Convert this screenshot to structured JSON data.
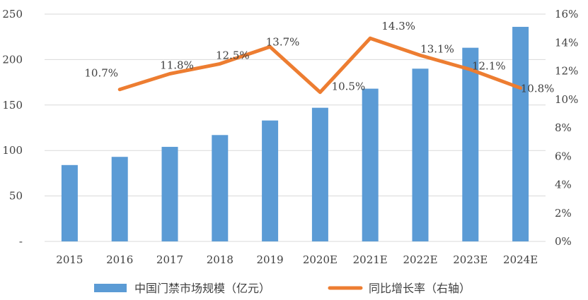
{
  "chart_data": {
    "type": "bar",
    "categories": [
      "2015",
      "2016",
      "2017",
      "2018",
      "2019",
      "2020E",
      "2021E",
      "2022E",
      "2023E",
      "2024E"
    ],
    "series": [
      {
        "name": "中国门禁市场规模（亿元）",
        "type": "bar",
        "axis": "left",
        "color": "#5B9BD5",
        "values": [
          84,
          93,
          104,
          117,
          133,
          147,
          168,
          190,
          213,
          236
        ]
      },
      {
        "name": "同比增长率（右轴）",
        "type": "line",
        "axis": "right",
        "color": "#ED7D31",
        "values": [
          null,
          0.107,
          0.118,
          0.125,
          0.137,
          0.105,
          0.143,
          0.131,
          0.121,
          0.108
        ],
        "labels": [
          "",
          "10.7%",
          "11.8%",
          "12.5%",
          "13.7%",
          "10.5%",
          "14.3%",
          "13.1%",
          "12.1%",
          "10.8%"
        ]
      }
    ],
    "left_axis": {
      "ylim": [
        0,
        250
      ],
      "ticks": [
        "-",
        "50",
        "100",
        "150",
        "200",
        "250"
      ]
    },
    "right_axis": {
      "ylim": [
        0,
        0.16
      ],
      "ticks": [
        "0%",
        "2%",
        "4%",
        "6%",
        "8%",
        "10%",
        "12%",
        "14%",
        "16%"
      ]
    },
    "grid": true,
    "legend": "bottom"
  }
}
